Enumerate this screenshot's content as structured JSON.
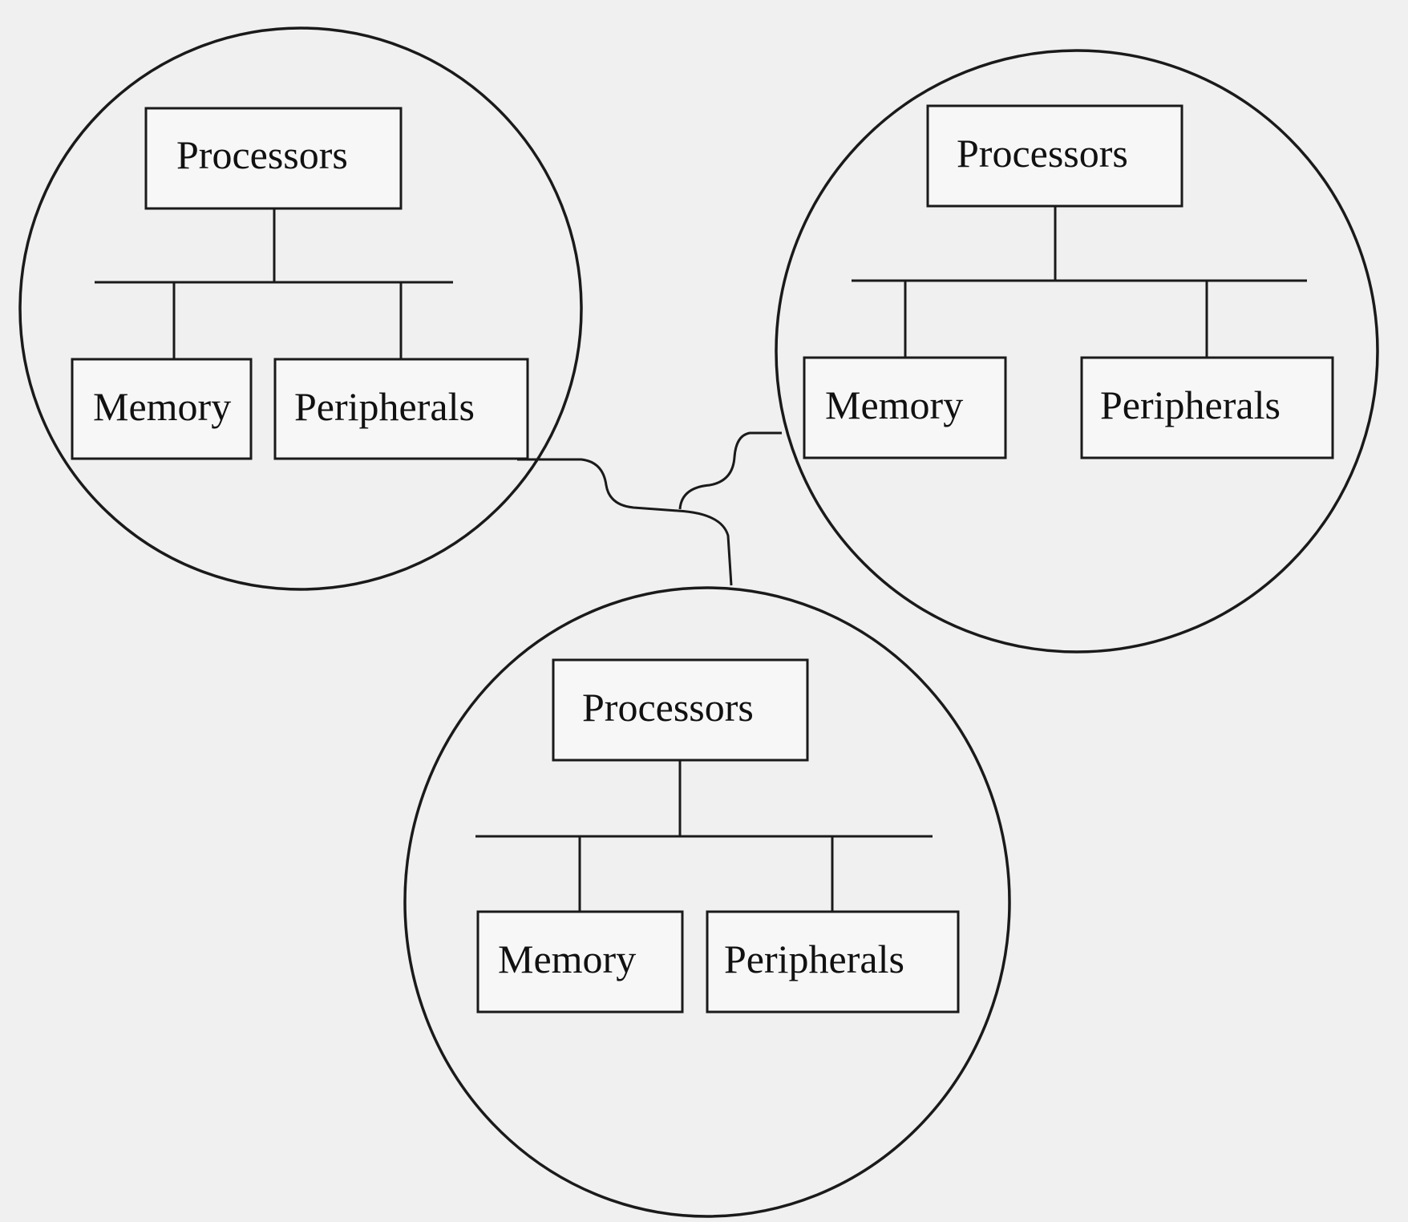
{
  "diagram": {
    "clusters": [
      {
        "id": "system-top-left",
        "processors_label": "Processors",
        "memory_label": "Memory",
        "peripherals_label": "Peripherals"
      },
      {
        "id": "system-top-right",
        "processors_label": "Processors",
        "memory_label": "Memory",
        "peripherals_label": "Peripherals"
      },
      {
        "id": "system-bottom",
        "processors_label": "Processors",
        "memory_label": "Memory",
        "peripherals_label": "Peripherals"
      }
    ]
  }
}
